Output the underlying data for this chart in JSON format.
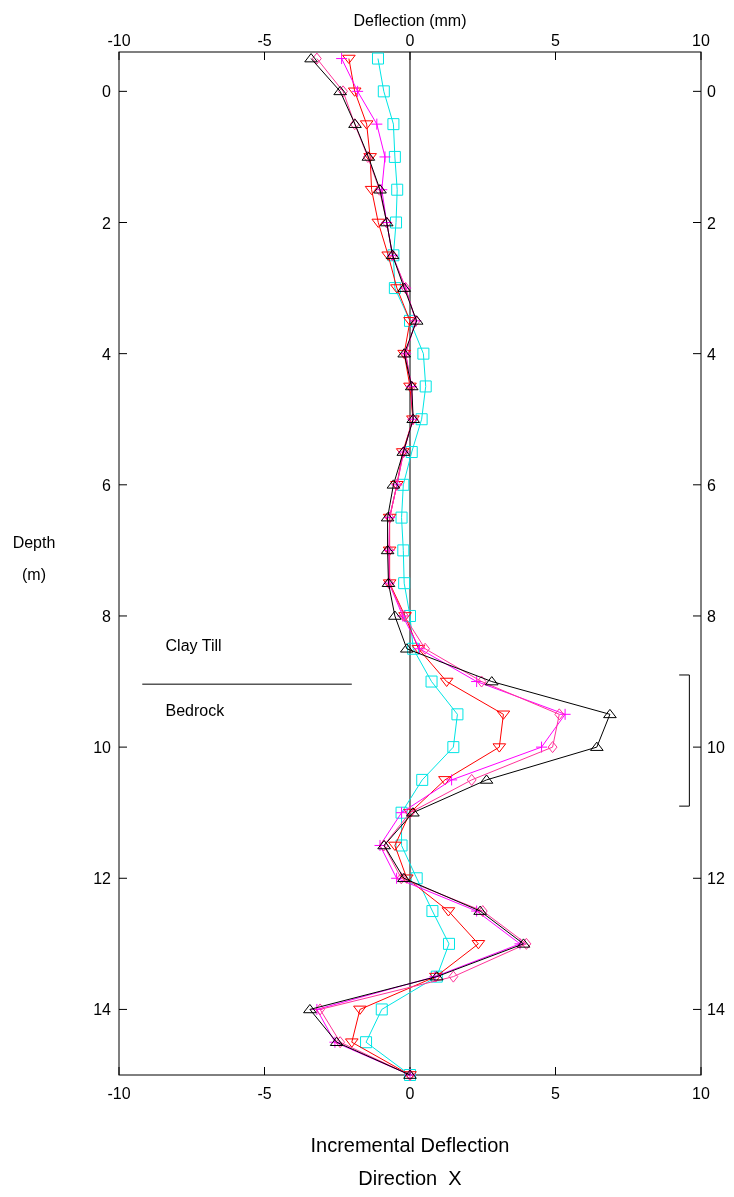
{
  "chart_data": {
    "type": "line",
    "xlabel": "Incremental Deflection\nDirection  X",
    "ylabel": "Depth\n(m)",
    "x2label": "Deflection (mm)",
    "xlim": [
      -10,
      10
    ],
    "xticks": [
      -10,
      -5,
      0,
      5,
      10
    ],
    "x2lim": [
      -10,
      10
    ],
    "x2ticks": [
      -10,
      -5,
      0,
      5,
      10
    ],
    "ylim": [
      15,
      -0.6
    ],
    "yticks": [
      0,
      2,
      4,
      6,
      8,
      10,
      12,
      14
    ],
    "y2lim": [
      15,
      -0.6
    ],
    "y2ticks": [
      0,
      2,
      4,
      6,
      8,
      10,
      12,
      14
    ],
    "series": [
      {
        "color": "#00e5e5",
        "marker": "square",
        "x": [
          -1.1,
          -0.9,
          -0.57,
          -0.52,
          -0.44,
          -0.48,
          -0.57,
          -0.52,
          0,
          0.46,
          0.54,
          0.4,
          0.06,
          -0.23,
          -0.29,
          -0.23,
          -0.2,
          0,
          0.11,
          0.74,
          1.63,
          1.49,
          0.42,
          -0.29,
          -0.29,
          0.23,
          0.77,
          1.34,
          0.92,
          -0.97,
          -1.51,
          0
        ],
        "values": [
          -0.5,
          0,
          0.5,
          1,
          1.5,
          2,
          2.5,
          3,
          3.5,
          4,
          4.5,
          5,
          5.5,
          6,
          6.5,
          7,
          7.5,
          8,
          8.5,
          9,
          9.5,
          10,
          10.5,
          11,
          11.5,
          12,
          12.5,
          13,
          13.5,
          14,
          14.5,
          15
        ]
      },
      {
        "color": "#ff0000",
        "marker": "triangle",
        "x": [
          -2.1,
          -1.9,
          -1.49,
          -1.37,
          -1.32,
          -1.09,
          -0.75,
          -0.45,
          0,
          -0.2,
          0,
          0.1,
          -0.25,
          -0.45,
          -0.7,
          -0.7,
          -0.7,
          -0.17,
          0.29,
          1.26,
          3.21,
          3.07,
          1.2,
          0,
          -0.52,
          -0.11,
          1.32,
          2.35,
          0.89,
          -1.72,
          -2.0,
          0
        ],
        "values": [
          -0.5,
          0,
          0.5,
          1,
          1.5,
          2,
          2.5,
          3,
          3.5,
          4,
          4.5,
          5,
          5.5,
          6,
          6.5,
          7,
          7.5,
          8,
          8.5,
          9,
          9.5,
          10,
          10.5,
          11,
          11.5,
          12,
          12.5,
          13,
          13.5,
          14,
          14.5,
          15
        ]
      },
      {
        "color": "#ff00ff",
        "marker": "cross",
        "x": [
          -2.35,
          -1.8,
          -1.14,
          -0.86,
          -0.97,
          -0.8,
          -0.6,
          -0.15,
          0.2,
          -0.15,
          0.05,
          0.1,
          -0.22,
          -0.45,
          -0.7,
          -0.72,
          -0.72,
          -0.25,
          0.33,
          2.29,
          5.33,
          4.52,
          1.43,
          -0.29,
          -1.03,
          -0.46,
          2.29,
          3.78,
          0.86,
          -3.2,
          -2.58,
          0
        ],
        "values": [
          -0.5,
          0,
          0.5,
          1,
          1.5,
          2,
          2.5,
          3,
          3.5,
          4,
          4.5,
          5,
          5.5,
          6,
          6.5,
          7,
          7.5,
          8,
          8.5,
          9,
          9.5,
          10,
          10.5,
          11,
          11.5,
          12,
          12.5,
          13,
          13.5,
          14,
          14.5,
          15
        ]
      },
      {
        "color": "#ff3399",
        "marker": "diamond",
        "x": [
          -3.2,
          -2.3,
          -1.9,
          -1.45,
          -1.05,
          -0.8,
          -0.6,
          -0.15,
          0.2,
          -0.15,
          0.05,
          0.1,
          -0.22,
          -0.45,
          -0.7,
          -0.72,
          -0.72,
          -0.2,
          0.52,
          2.46,
          5.13,
          4.9,
          2.12,
          0,
          -0.9,
          -0.3,
          2.5,
          4.0,
          1.49,
          -3.09,
          -2.4,
          0
        ],
        "values": [
          -0.5,
          0,
          0.5,
          1,
          1.5,
          2,
          2.5,
          3,
          3.5,
          4,
          4.5,
          5,
          5.5,
          6,
          6.5,
          7,
          7.5,
          8,
          8.5,
          9,
          9.5,
          10,
          10.5,
          11,
          11.5,
          12,
          12.5,
          13,
          13.5,
          14,
          14.5,
          15
        ]
      },
      {
        "color": "#000000",
        "marker": "triangle",
        "x": [
          -3.4,
          -2.4,
          -1.89,
          -1.43,
          -1.03,
          -0.8,
          -0.6,
          -0.2,
          0.23,
          -0.2,
          0.06,
          0.11,
          -0.23,
          -0.57,
          -0.77,
          -0.77,
          -0.74,
          -0.52,
          -0.11,
          2.81,
          6.87,
          6.42,
          2.63,
          0.1,
          -0.89,
          -0.21,
          2.41,
          3.9,
          0.92,
          -3.44,
          -2.52,
          0
        ],
        "values": [
          -0.5,
          0,
          0.5,
          1,
          1.5,
          2,
          2.5,
          3,
          3.5,
          4,
          4.5,
          5,
          5.5,
          6,
          6.5,
          7,
          7.5,
          8,
          8.5,
          9,
          9.5,
          10,
          10.5,
          11,
          11.5,
          12,
          12.5,
          13,
          13.5,
          14,
          14.5,
          15
        ]
      }
    ],
    "ref_lines": [
      {
        "axis": "x",
        "value": 0,
        "color": "#000000"
      }
    ],
    "annotations": [
      "Clay Till",
      "Bedrock"
    ],
    "grid": false,
    "line_style": "solid"
  }
}
